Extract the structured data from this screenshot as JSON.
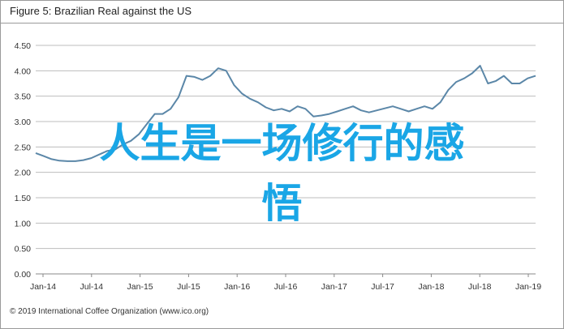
{
  "figure": {
    "title": "Figure 5: Brazilian Real against the US",
    "footer": "© 2019 International Coffee Organization (www.ico.org)"
  },
  "overlay": {
    "line1": "人生是一场修行的感",
    "line2": "悟",
    "color": "#1aa6e6"
  },
  "colors": {
    "series": "#5b87a8",
    "grid": "#bdbdbd",
    "axis": "#888888"
  },
  "chart_data": {
    "type": "line",
    "title": "Figure 5: Brazilian Real against the US",
    "xlabel": "",
    "ylabel": "",
    "ylim": [
      0,
      4.5
    ],
    "yticks": [
      "0.00",
      "0.50",
      "1.00",
      "1.50",
      "2.00",
      "2.50",
      "3.00",
      "3.50",
      "4.00",
      "4.50"
    ],
    "xticks": [
      "Jan-14",
      "Jul-14",
      "Jan-15",
      "Jul-15",
      "Jan-16",
      "Jul-16",
      "Jan-17",
      "Jul-17",
      "Jan-18",
      "Jul-18",
      "Jan-19"
    ],
    "grid": true,
    "series": [
      {
        "values": [
          2.38,
          2.32,
          2.26,
          2.23,
          2.22,
          2.22,
          2.24,
          2.28,
          2.35,
          2.42,
          2.45,
          2.55,
          2.62,
          2.75,
          2.95,
          3.15,
          3.15,
          3.25,
          3.48,
          3.9,
          3.88,
          3.82,
          3.9,
          4.05,
          4.0,
          3.72,
          3.55,
          3.45,
          3.38,
          3.28,
          3.22,
          3.25,
          3.2,
          3.3,
          3.25,
          3.1,
          3.12,
          3.15,
          3.2,
          3.25,
          3.3,
          3.22,
          3.18,
          3.22,
          3.26,
          3.3,
          3.25,
          3.2,
          3.25,
          3.3,
          3.25,
          3.38,
          3.62,
          3.78,
          3.85,
          3.95,
          4.1,
          3.75,
          3.8,
          3.9,
          3.75,
          3.75,
          3.85,
          3.9
        ]
      }
    ]
  }
}
